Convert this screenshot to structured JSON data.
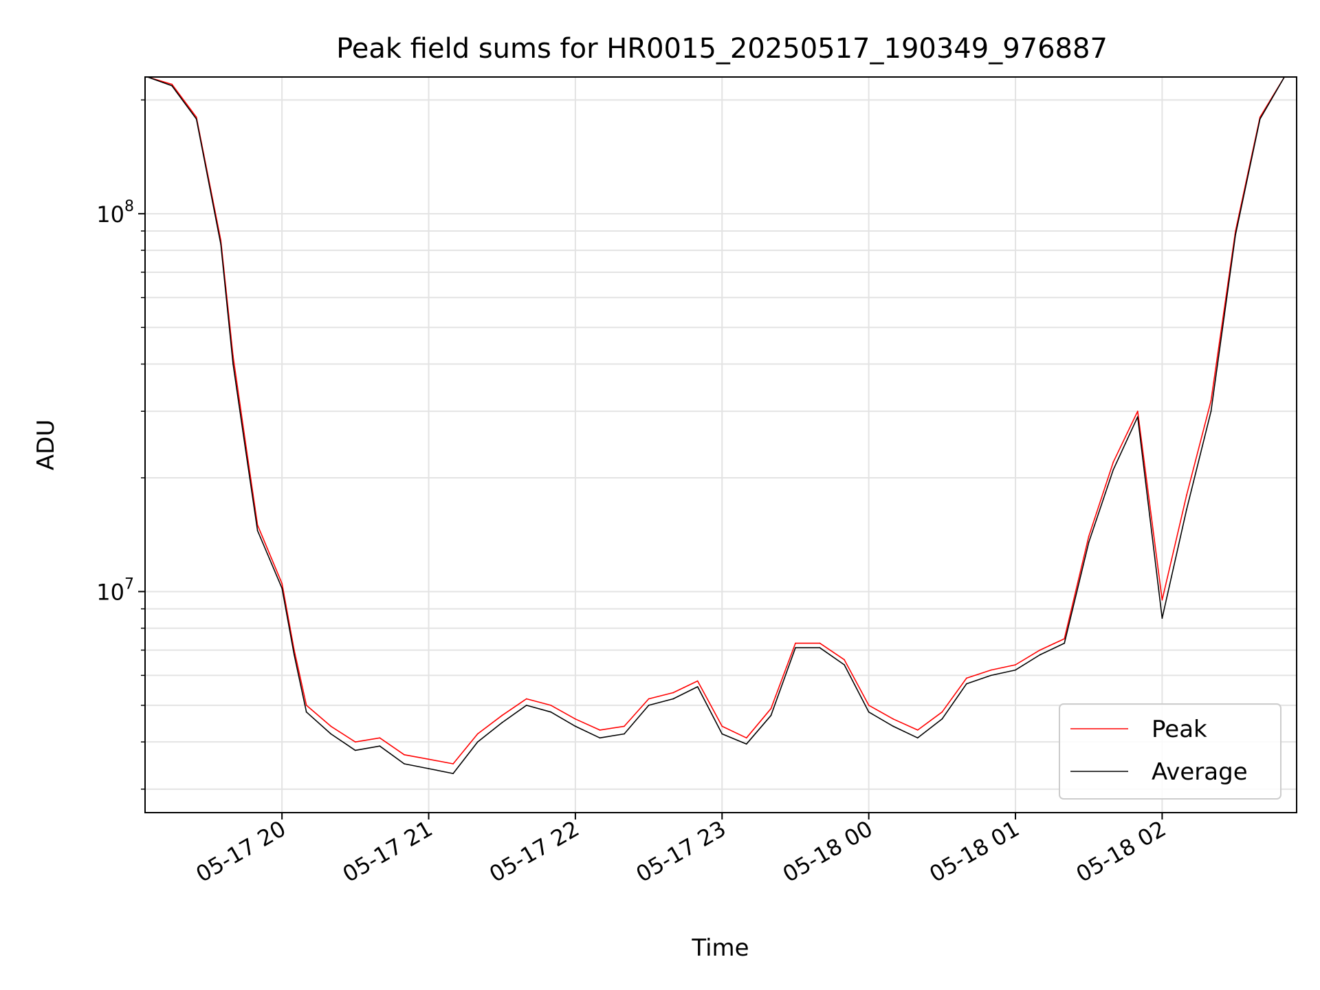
{
  "chart_data": {
    "type": "line",
    "title": "Peak field sums for HR0015_20250517_190349_976887",
    "xlabel": "Time",
    "ylabel": "ADU",
    "yscale": "log",
    "ylim": [
      2600000,
      230000000
    ],
    "xlim": [
      "2025-05-17 19:04",
      "2025-05-18 02:55"
    ],
    "x_ticks": [
      "05-17 20",
      "05-17 21",
      "05-17 22",
      "05-17 23",
      "05-18 00",
      "05-18 01",
      "05-18 02"
    ],
    "y_ticks": [
      "10^8",
      "10^7"
    ],
    "grid": true,
    "legend_position": "lower right",
    "series": [
      {
        "name": "Peak",
        "color": "#ff0000",
        "x": [
          "2025-05-17 19:05",
          "2025-05-17 19:15",
          "2025-05-17 19:25",
          "2025-05-17 19:35",
          "2025-05-17 19:40",
          "2025-05-17 19:45",
          "2025-05-17 19:50",
          "2025-05-17 20:00",
          "2025-05-17 20:05",
          "2025-05-17 20:10",
          "2025-05-17 20:20",
          "2025-05-17 20:30",
          "2025-05-17 20:40",
          "2025-05-17 20:50",
          "2025-05-17 21:00",
          "2025-05-17 21:10",
          "2025-05-17 21:20",
          "2025-05-17 21:30",
          "2025-05-17 21:40",
          "2025-05-17 21:50",
          "2025-05-17 22:00",
          "2025-05-17 22:10",
          "2025-05-17 22:20",
          "2025-05-17 22:30",
          "2025-05-17 22:40",
          "2025-05-17 22:50",
          "2025-05-17 23:00",
          "2025-05-17 23:10",
          "2025-05-17 23:20",
          "2025-05-17 23:30",
          "2025-05-17 23:40",
          "2025-05-17 23:50",
          "2025-05-18 00:00",
          "2025-05-18 00:10",
          "2025-05-18 00:20",
          "2025-05-18 00:30",
          "2025-05-18 00:40",
          "2025-05-18 00:50",
          "2025-05-18 01:00",
          "2025-05-18 01:10",
          "2025-05-18 01:20",
          "2025-05-18 01:30",
          "2025-05-18 01:40",
          "2025-05-18 01:50",
          "2025-05-18 02:00",
          "2025-05-18 02:10",
          "2025-05-18 02:20",
          "2025-05-18 02:30",
          "2025-05-18 02:40",
          "2025-05-18 02:50"
        ],
        "values": [
          230000000,
          220000000,
          180000000,
          85000000,
          42000000,
          25000000,
          15000000,
          10500000,
          7000000,
          5000000,
          4400000,
          4000000,
          4100000,
          3700000,
          3600000,
          3500000,
          4200000,
          4700000,
          5200000,
          5000000,
          4600000,
          4300000,
          4400000,
          5200000,
          5400000,
          5800000,
          4400000,
          4100000,
          4900000,
          7300000,
          7300000,
          6600000,
          5000000,
          4600000,
          4300000,
          4800000,
          5900000,
          6200000,
          6400000,
          7000000,
          7500000,
          14000000,
          22000000,
          30000000,
          9500000,
          18000000,
          32000000,
          90000000,
          180000000,
          230000000
        ]
      },
      {
        "name": "Average",
        "color": "#000000",
        "x": [
          "2025-05-17 19:05",
          "2025-05-17 19:15",
          "2025-05-17 19:25",
          "2025-05-17 19:35",
          "2025-05-17 19:40",
          "2025-05-17 19:45",
          "2025-05-17 19:50",
          "2025-05-17 20:00",
          "2025-05-17 20:05",
          "2025-05-17 20:10",
          "2025-05-17 20:20",
          "2025-05-17 20:30",
          "2025-05-17 20:40",
          "2025-05-17 20:50",
          "2025-05-17 21:00",
          "2025-05-17 21:10",
          "2025-05-17 21:20",
          "2025-05-17 21:30",
          "2025-05-17 21:40",
          "2025-05-17 21:50",
          "2025-05-17 22:00",
          "2025-05-17 22:10",
          "2025-05-17 22:20",
          "2025-05-17 22:30",
          "2025-05-17 22:40",
          "2025-05-17 22:50",
          "2025-05-17 23:00",
          "2025-05-17 23:10",
          "2025-05-17 23:20",
          "2025-05-17 23:30",
          "2025-05-17 23:40",
          "2025-05-17 23:50",
          "2025-05-18 00:00",
          "2025-05-18 00:10",
          "2025-05-18 00:20",
          "2025-05-18 00:30",
          "2025-05-18 00:40",
          "2025-05-18 00:50",
          "2025-05-18 01:00",
          "2025-05-18 01:10",
          "2025-05-18 01:20",
          "2025-05-18 01:30",
          "2025-05-18 01:40",
          "2025-05-18 01:50",
          "2025-05-18 02:00",
          "2025-05-18 02:10",
          "2025-05-18 02:20",
          "2025-05-18 02:30",
          "2025-05-18 02:40",
          "2025-05-18 02:50"
        ],
        "values": [
          230000000,
          218000000,
          178000000,
          83000000,
          40000000,
          24000000,
          14500000,
          10200000,
          6800000,
          4800000,
          4200000,
          3800000,
          3900000,
          3500000,
          3400000,
          3300000,
          4000000,
          4500000,
          5000000,
          4800000,
          4400000,
          4100000,
          4200000,
          5000000,
          5200000,
          5600000,
          4200000,
          3950000,
          4700000,
          7100000,
          7100000,
          6400000,
          4800000,
          4400000,
          4100000,
          4600000,
          5700000,
          6000000,
          6200000,
          6800000,
          7300000,
          13500000,
          21000000,
          29000000,
          8500000,
          16500000,
          30000000,
          88000000,
          178000000,
          230000000
        ]
      }
    ]
  }
}
